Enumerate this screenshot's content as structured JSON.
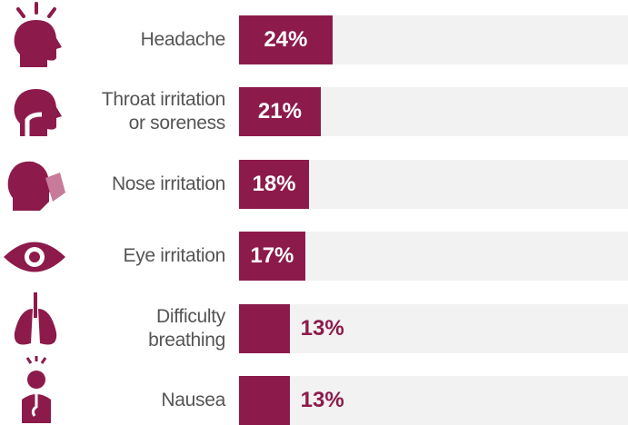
{
  "chart_data": {
    "type": "bar",
    "orientation": "horizontal",
    "categories": [
      "Headache",
      "Throat irritation\nor soreness",
      "Nose irritation",
      "Eye irritation",
      "Difficulty\nbreathing",
      "Nausea"
    ],
    "values": [
      24,
      21,
      18,
      17,
      13,
      13
    ],
    "value_labels": [
      "24%",
      "21%",
      "18%",
      "17%",
      "13%",
      "13%"
    ],
    "color": "#8c1b4c",
    "track_color": "#f2f2f2",
    "xlim": [
      0,
      100
    ]
  }
}
